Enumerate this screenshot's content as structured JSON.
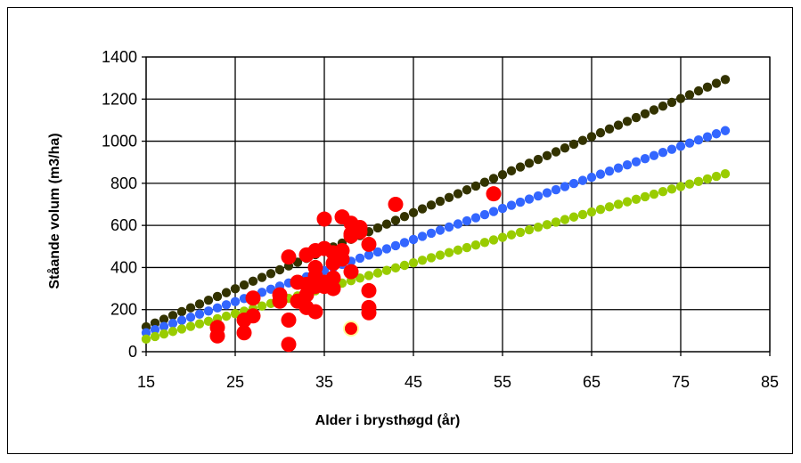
{
  "chart_data": {
    "type": "scatter",
    "title": "",
    "xlabel": "Alder i brysthøgd (år)",
    "ylabel": "Ståande volum (m3/ha)",
    "xlim": [
      15,
      85
    ],
    "ylim": [
      0,
      1400
    ],
    "xticks": [
      15,
      25,
      35,
      45,
      55,
      65,
      75,
      85
    ],
    "yticks": [
      0,
      200,
      400,
      600,
      800,
      1000,
      1200,
      1400
    ],
    "grid": true,
    "legend": "none",
    "colors": {
      "background": "#ffffff",
      "grid": "#000000"
    },
    "series": [
      {
        "style": "small-dots-line",
        "color": "#333300",
        "points": [
          [
            15,
            118
          ],
          [
            80,
            1293
          ]
        ]
      },
      {
        "style": "small-dots-line",
        "color": "#3366ff",
        "points": [
          [
            15,
            90
          ],
          [
            80,
            1050
          ]
        ]
      },
      {
        "style": "small-dots-line",
        "color": "#99cc00",
        "points": [
          [
            15,
            60
          ],
          [
            80,
            845
          ]
        ]
      },
      {
        "style": "large-dots",
        "color": "#ff0000",
        "points": [
          [
            23,
            115
          ],
          [
            23,
            75
          ],
          [
            26,
            90
          ],
          [
            26,
            150
          ],
          [
            27,
            170
          ],
          [
            27,
            255
          ],
          [
            30,
            270
          ],
          [
            30,
            240
          ],
          [
            31,
            450
          ],
          [
            31,
            150
          ],
          [
            31,
            35
          ],
          [
            32,
            330
          ],
          [
            32,
            240
          ],
          [
            33,
            460
          ],
          [
            33,
            320
          ],
          [
            33,
            270
          ],
          [
            33,
            210
          ],
          [
            34,
            480
          ],
          [
            34,
            400
          ],
          [
            34,
            360
          ],
          [
            34,
            310
          ],
          [
            34,
            190
          ],
          [
            35,
            630
          ],
          [
            35,
            490
          ],
          [
            35,
            330
          ],
          [
            35,
            310
          ],
          [
            36,
            470
          ],
          [
            36,
            420
          ],
          [
            36,
            350
          ],
          [
            36,
            300
          ],
          [
            37,
            640
          ],
          [
            37,
            480
          ],
          [
            37,
            440
          ],
          [
            38,
            610
          ],
          [
            38,
            550
          ],
          [
            38,
            380
          ],
          [
            38,
            560
          ],
          [
            39,
            590
          ],
          [
            39,
            570
          ],
          [
            40,
            510
          ],
          [
            40,
            290
          ],
          [
            40,
            210
          ],
          [
            40,
            185
          ],
          [
            43,
            700
          ],
          [
            54,
            750
          ]
        ]
      },
      {
        "style": "large-dot-outlined",
        "color": "#ff0000",
        "outline": "#ffff99",
        "points": [
          [
            38,
            110
          ]
        ]
      }
    ]
  }
}
